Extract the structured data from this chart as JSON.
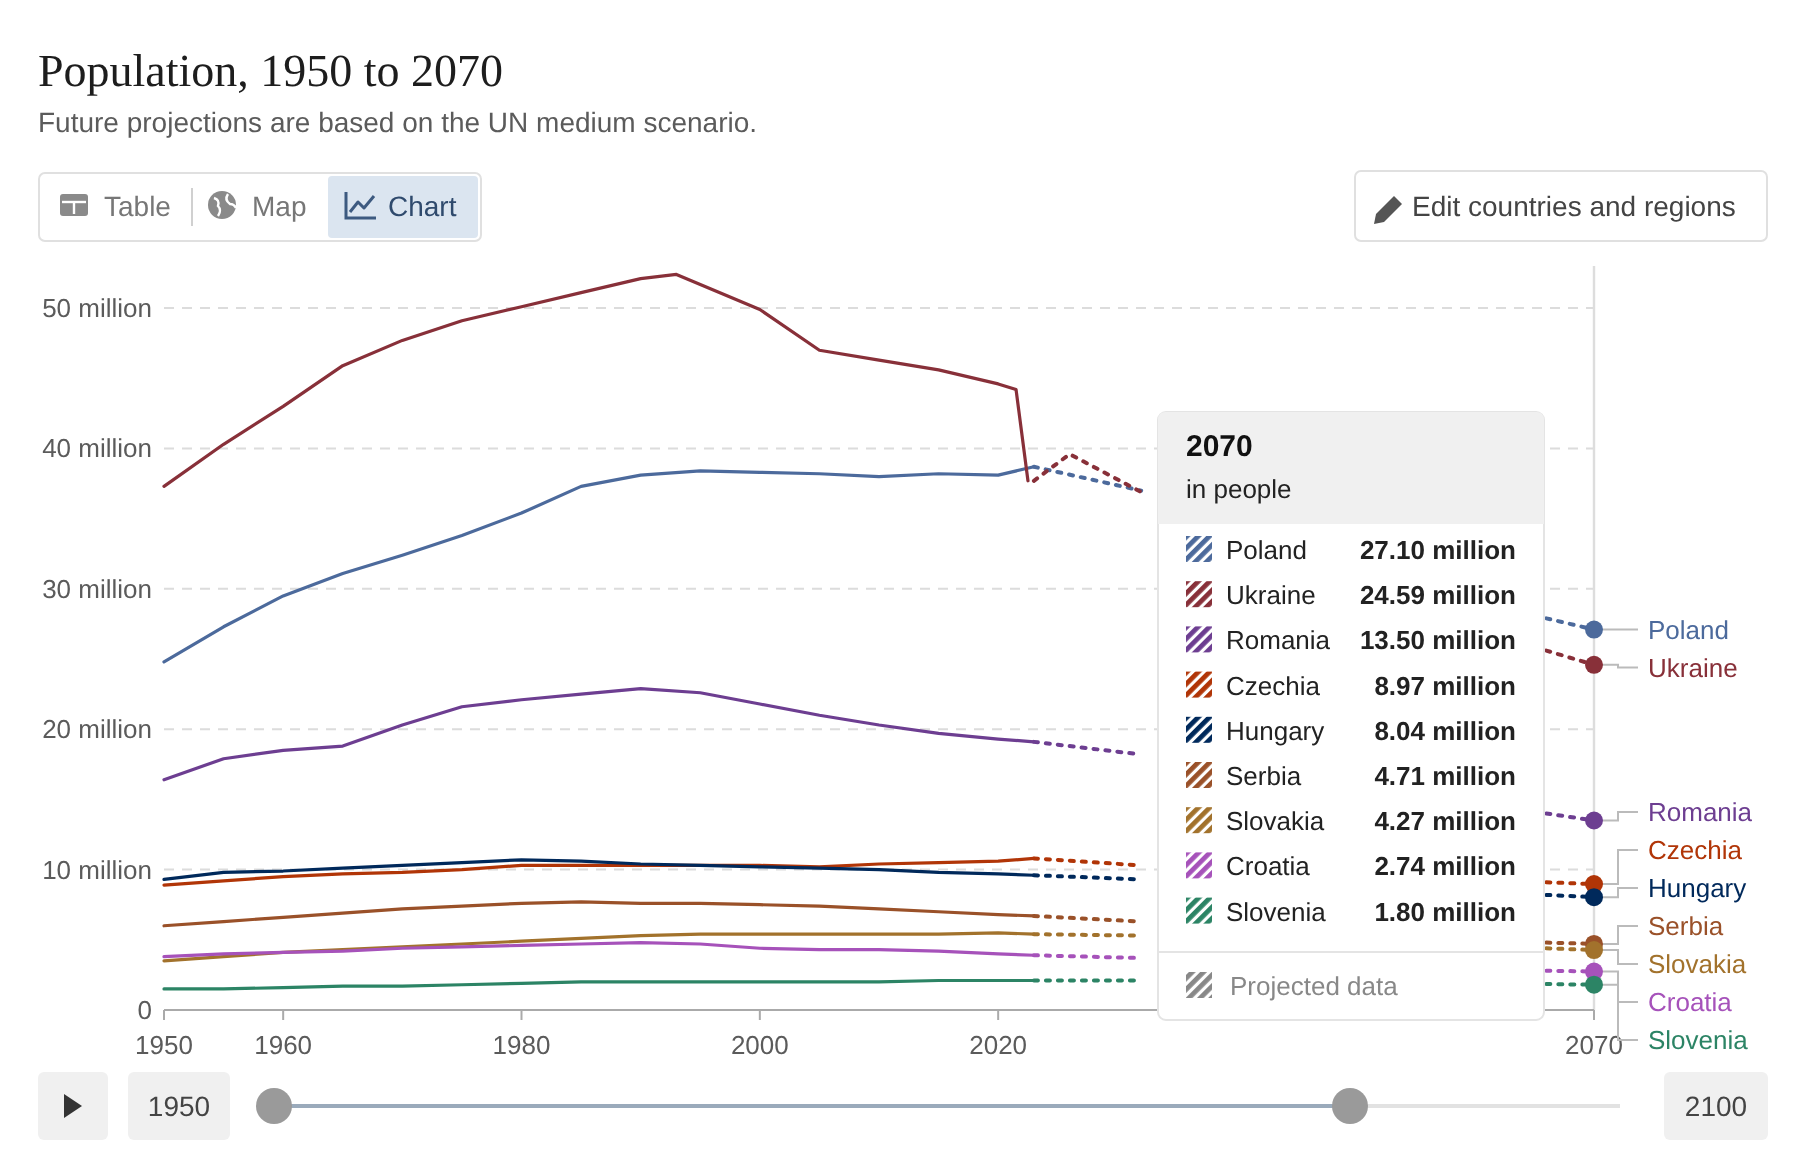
{
  "chart_data": {
    "type": "line",
    "title": "Population, 1950 to 2070",
    "subtitle": "Future projections are based on the UN medium scenario.",
    "annotations": [
      "2070",
      "in people",
      "Projected data",
      "Table",
      "Map",
      "Chart",
      "Edit countries and regions",
      "1950",
      "2100",
      "27.10 million",
      "24.59 million",
      "13.50 million",
      "8.97 million",
      "8.04 million",
      "4.71 million",
      "4.27 million",
      "2.74 million",
      "1.80 million"
    ],
    "x": [
      1950,
      1955,
      1960,
      1965,
      1970,
      1975,
      1980,
      1985,
      1990,
      1995,
      2000,
      2005,
      2010,
      2015,
      2020,
      2023
    ],
    "xlim": [
      1950,
      2070
    ],
    "xticks": [
      1950,
      1960,
      1980,
      2000,
      2020,
      2070
    ],
    "ylim": [
      0,
      53
    ],
    "yticks": [
      0,
      {
        "value": 10,
        "label": "10 million"
      },
      {
        "value": 20,
        "label": "20 million"
      },
      {
        "value": 30,
        "label": "30 million"
      },
      {
        "value": 40,
        "label": "40 million"
      },
      {
        "value": 50,
        "label": "50 million"
      }
    ],
    "grid": "y",
    "legend": "right",
    "line_style": "solid",
    "ref_lines": [
      {
        "axis": "x",
        "value": 2070,
        "color": "#dddddd"
      }
    ],
    "series": [
      {
        "name": "Poland",
        "color": "#4c6a9c",
        "values": [
          24.8,
          27.3,
          29.5,
          31.1,
          32.4,
          33.8,
          35.4,
          37.3,
          38.1,
          38.4,
          38.3,
          38.2,
          38.0,
          38.2,
          38.1,
          38.7
        ]
      },
      {
        "name": "Ukraine",
        "color": "#883039",
        "x": [
          1950,
          1955,
          1960,
          1965,
          1970,
          1975,
          1980,
          1985,
          1990,
          1993,
          2000,
          2005,
          2010,
          2015,
          2020,
          2021.5,
          2022.5
        ],
        "values": [
          37.3,
          40.3,
          43.0,
          45.9,
          47.7,
          49.1,
          50.1,
          51.1,
          52.1,
          52.4,
          49.9,
          47.0,
          46.3,
          45.6,
          44.6,
          44.2,
          37.7
        ]
      },
      {
        "name": "Romania",
        "color": "#6d3e91",
        "values": [
          16.4,
          17.9,
          18.5,
          18.8,
          20.3,
          21.6,
          22.1,
          22.5,
          22.9,
          22.6,
          21.8,
          21.0,
          20.3,
          19.7,
          19.3,
          19.1
        ]
      },
      {
        "name": "Czechia",
        "color": "#b13507",
        "values": [
          8.9,
          9.2,
          9.5,
          9.7,
          9.8,
          10.0,
          10.3,
          10.3,
          10.3,
          10.3,
          10.3,
          10.2,
          10.4,
          10.5,
          10.6,
          10.8
        ]
      },
      {
        "name": "Hungary",
        "color": "#00295b",
        "values": [
          9.3,
          9.8,
          9.9,
          10.1,
          10.3,
          10.5,
          10.7,
          10.6,
          10.4,
          10.3,
          10.2,
          10.1,
          10.0,
          9.8,
          9.7,
          9.6
        ]
      },
      {
        "name": "Serbia",
        "color": "#9a5129",
        "values": [
          6.0,
          6.3,
          6.6,
          6.9,
          7.2,
          7.4,
          7.6,
          7.7,
          7.6,
          7.6,
          7.5,
          7.4,
          7.2,
          7.0,
          6.8,
          6.7
        ]
      },
      {
        "name": "Slovakia",
        "color": "#a2722c",
        "values": [
          3.5,
          3.8,
          4.1,
          4.3,
          4.5,
          4.7,
          4.9,
          5.1,
          5.3,
          5.4,
          5.4,
          5.4,
          5.4,
          5.4,
          5.5,
          5.4
        ]
      },
      {
        "name": "Croatia",
        "color": "#a652ba",
        "values": [
          3.8,
          4.0,
          4.1,
          4.2,
          4.4,
          4.5,
          4.6,
          4.7,
          4.8,
          4.7,
          4.4,
          4.3,
          4.3,
          4.2,
          4.0,
          3.9
        ]
      },
      {
        "name": "Slovenia",
        "color": "#2c8465",
        "values": [
          1.5,
          1.5,
          1.6,
          1.7,
          1.7,
          1.8,
          1.9,
          2.0,
          2.0,
          2.0,
          2.0,
          2.0,
          2.0,
          2.1,
          2.1,
          2.1
        ]
      },
      {
        "color": "#4c6a9c",
        "line_style": "dotted",
        "x": [
          2023,
          2032,
          2050,
          2066,
          2070
        ],
        "values": [
          38.7,
          37.0,
          null,
          27.9,
          27.1
        ]
      },
      {
        "color": "#883039",
        "line_style": "dotted",
        "x": [
          2023,
          2026,
          2032,
          2050,
          2066,
          2070
        ],
        "values": [
          37.7,
          39.6,
          36.9,
          null,
          25.6,
          24.59
        ]
      },
      {
        "color": "#6d3e91",
        "line_style": "dotted",
        "x": [
          2023,
          2032,
          2050,
          2066,
          2070
        ],
        "values": [
          19.1,
          18.2,
          null,
          14.0,
          13.5
        ]
      },
      {
        "color": "#b13507",
        "line_style": "dotted",
        "x": [
          2023,
          2032,
          2050,
          2066,
          2070
        ],
        "values": [
          10.8,
          10.3,
          null,
          9.1,
          8.97
        ]
      },
      {
        "color": "#00295b",
        "line_style": "dotted",
        "x": [
          2023,
          2032,
          2050,
          2066,
          2070
        ],
        "values": [
          9.6,
          9.3,
          null,
          8.2,
          8.04
        ]
      },
      {
        "color": "#9a5129",
        "line_style": "dotted",
        "x": [
          2023,
          2032,
          2050,
          2066,
          2070
        ],
        "values": [
          6.7,
          6.3,
          null,
          4.8,
          4.71
        ]
      },
      {
        "color": "#a2722c",
        "line_style": "dotted",
        "x": [
          2023,
          2032,
          2050,
          2066,
          2070
        ],
        "values": [
          5.4,
          5.3,
          null,
          4.4,
          4.27
        ]
      },
      {
        "color": "#a652ba",
        "line_style": "dotted",
        "x": [
          2023,
          2032,
          2050,
          2066,
          2070
        ],
        "values": [
          3.9,
          3.7,
          null,
          2.8,
          2.74
        ]
      },
      {
        "color": "#2c8465",
        "line_style": "dotted",
        "x": [
          2023,
          2032,
          2050,
          2066,
          2070
        ],
        "values": [
          2.1,
          2.1,
          null,
          1.85,
          1.8
        ]
      }
    ]
  }
}
